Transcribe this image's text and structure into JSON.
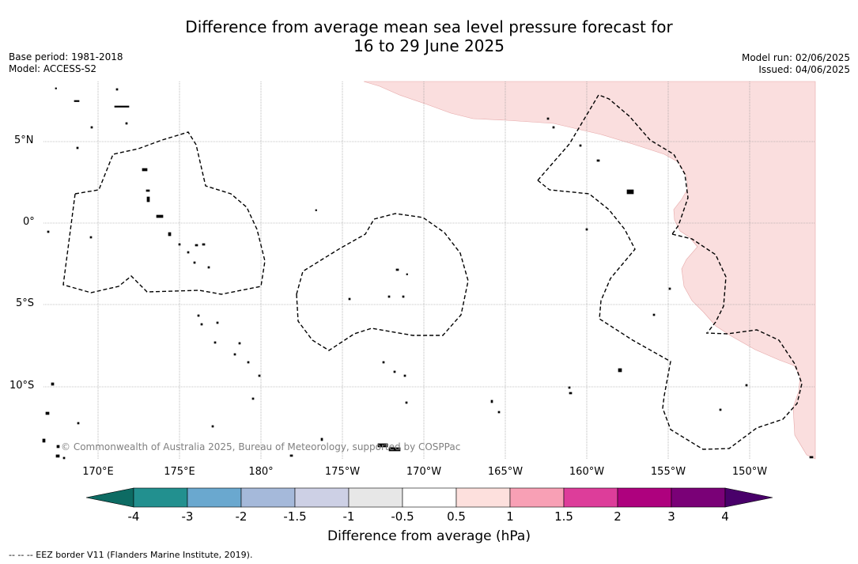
{
  "title": {
    "line1": "Difference from average mean sea level pressure forecast for",
    "line2": "16 to 29 June 2025"
  },
  "meta_left": {
    "base_period": "Base period: 1981-2018",
    "model": "Model: ACCESS-S2"
  },
  "meta_right": {
    "model_run": "Model run: 02/06/2025",
    "issued": "Issued: 04/06/2025"
  },
  "map": {
    "lat_labels": [
      "5°N",
      "0°",
      "5°S",
      "10°S"
    ],
    "lon_labels": [
      "170°E",
      "175°E",
      "180°",
      "175°W",
      "170°W",
      "165°W",
      "160°W",
      "155°W",
      "150°W"
    ],
    "positive_area_color": "#fadede",
    "gridlines": true,
    "copyright": "© Commonwealth of Australia 2025, Bureau of Meteorology, supported by COSPPac"
  },
  "colorbar": {
    "ticks": [
      "-4",
      "-3",
      "-2",
      "-1.5",
      "-1",
      "-0.5",
      "0.5",
      "1",
      "1.5",
      "2",
      "3",
      "4"
    ],
    "colors": [
      "#0d6b63",
      "#22908f",
      "#6aa8cf",
      "#a5b9da",
      "#cdd0e5",
      "#e7e7e7",
      "#ffffff",
      "#fde0dd",
      "#f8a0b5",
      "#dd3d9a",
      "#ae017e",
      "#7a0177",
      "#49006a"
    ],
    "label": "Difference from average (hPa)"
  },
  "footnote": "--  --  -- EEZ border V11 (Flanders Marine Institute, 2019)."
}
